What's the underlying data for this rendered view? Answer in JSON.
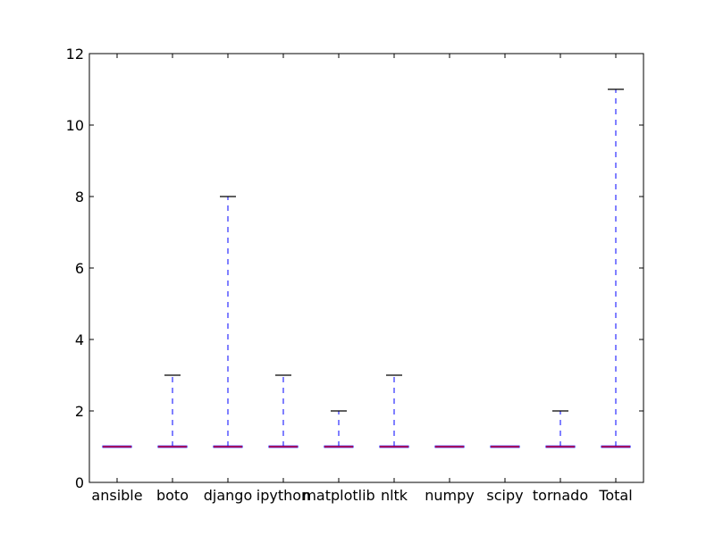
{
  "chart_data": {
    "type": "box",
    "title": "",
    "xlabel": "",
    "ylabel": "",
    "ylim": [
      0,
      12
    ],
    "yticks": [
      0,
      2,
      4,
      6,
      8,
      10,
      12
    ],
    "grid": false,
    "categories": [
      "ansible",
      "boto",
      "django",
      "ipython",
      "matplotlib",
      "nltk",
      "numpy",
      "scipy",
      "tornado",
      "Total"
    ],
    "boxes": [
      {
        "label": "ansible",
        "min": 1,
        "q1": 1,
        "median": 1,
        "q3": 1,
        "max": 1
      },
      {
        "label": "boto",
        "min": 1,
        "q1": 1,
        "median": 1,
        "q3": 1,
        "max": 3
      },
      {
        "label": "django",
        "min": 1,
        "q1": 1,
        "median": 1,
        "q3": 1,
        "max": 8
      },
      {
        "label": "ipython",
        "min": 1,
        "q1": 1,
        "median": 1,
        "q3": 1,
        "max": 3
      },
      {
        "label": "matplotlib",
        "min": 1,
        "q1": 1,
        "median": 1,
        "q3": 1,
        "max": 2
      },
      {
        "label": "nltk",
        "min": 1,
        "q1": 1,
        "median": 1,
        "q3": 1,
        "max": 3
      },
      {
        "label": "numpy",
        "min": 1,
        "q1": 1,
        "median": 1,
        "q3": 1,
        "max": 1
      },
      {
        "label": "scipy",
        "min": 1,
        "q1": 1,
        "median": 1,
        "q3": 1,
        "max": 1
      },
      {
        "label": "tornado",
        "min": 1,
        "q1": 1,
        "median": 1,
        "q3": 1,
        "max": 2
      },
      {
        "label": "Total",
        "min": 1,
        "q1": 1,
        "median": 1,
        "q3": 1,
        "max": 11
      }
    ],
    "colors": {
      "box": "#0000ff",
      "whisker": "#0000ff",
      "cap": "#000000",
      "median": "#ff0000"
    }
  }
}
